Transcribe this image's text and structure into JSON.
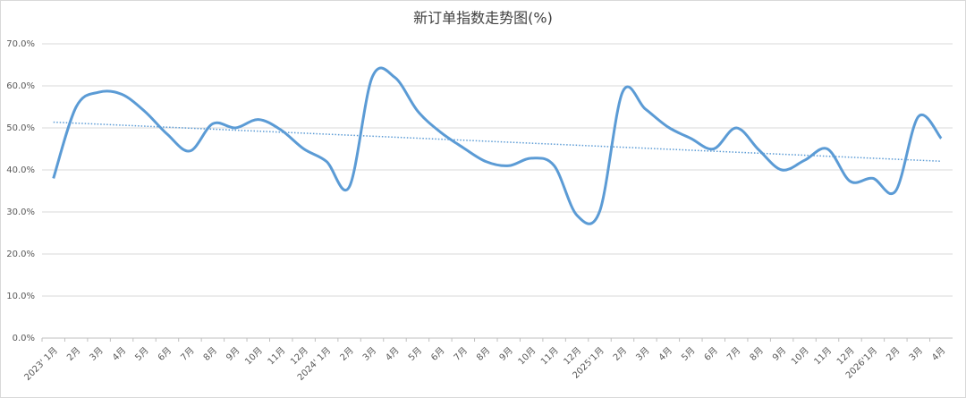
{
  "chart_data": {
    "type": "line",
    "title": "新订单指数走势图(%)",
    "categories": [
      "2023' 1月",
      "2月",
      "3月",
      "4月",
      "5月",
      "6月",
      "7月",
      "8月",
      "9月",
      "10月",
      "11月",
      "12月",
      "2024' 1月",
      "2月",
      "3月",
      "4月",
      "5月",
      "6月",
      "7月",
      "8月",
      "9月",
      "10月",
      "11月",
      "12月",
      "2025'1月",
      "2月",
      "3月",
      "4月",
      "5月",
      "6月",
      "7月",
      "8月",
      "9月",
      "10月",
      "11月",
      "12月",
      "2026'1月",
      "2月",
      "3月",
      "4月"
    ],
    "values": [
      38,
      55,
      58.5,
      58,
      54,
      48.5,
      44.5,
      51,
      50,
      52,
      49.5,
      45,
      42,
      36,
      62,
      62,
      54,
      49,
      45.3,
      42,
      41,
      42.8,
      41,
      29.2,
      30.2,
      58.5,
      54.5,
      50.2,
      47.5,
      45,
      50,
      44.7,
      40,
      42.3,
      45,
      37.3,
      38,
      35,
      52.7,
      47.5
    ],
    "color": "#5b9bd5",
    "trendline": "linear",
    "ylim": [
      0,
      70
    ],
    "yticks": [
      {
        "value": 0,
        "label": "0.0%"
      },
      {
        "value": 10,
        "label": "10.0%"
      },
      {
        "value": 20,
        "label": "20.0%"
      },
      {
        "value": 30,
        "label": "30.0%"
      },
      {
        "value": 40,
        "label": "40.0%"
      },
      {
        "value": 50,
        "label": "50.0%"
      },
      {
        "value": 60,
        "label": "60.0%"
      },
      {
        "value": 70,
        "label": "70.0%"
      }
    ],
    "grid": true
  }
}
